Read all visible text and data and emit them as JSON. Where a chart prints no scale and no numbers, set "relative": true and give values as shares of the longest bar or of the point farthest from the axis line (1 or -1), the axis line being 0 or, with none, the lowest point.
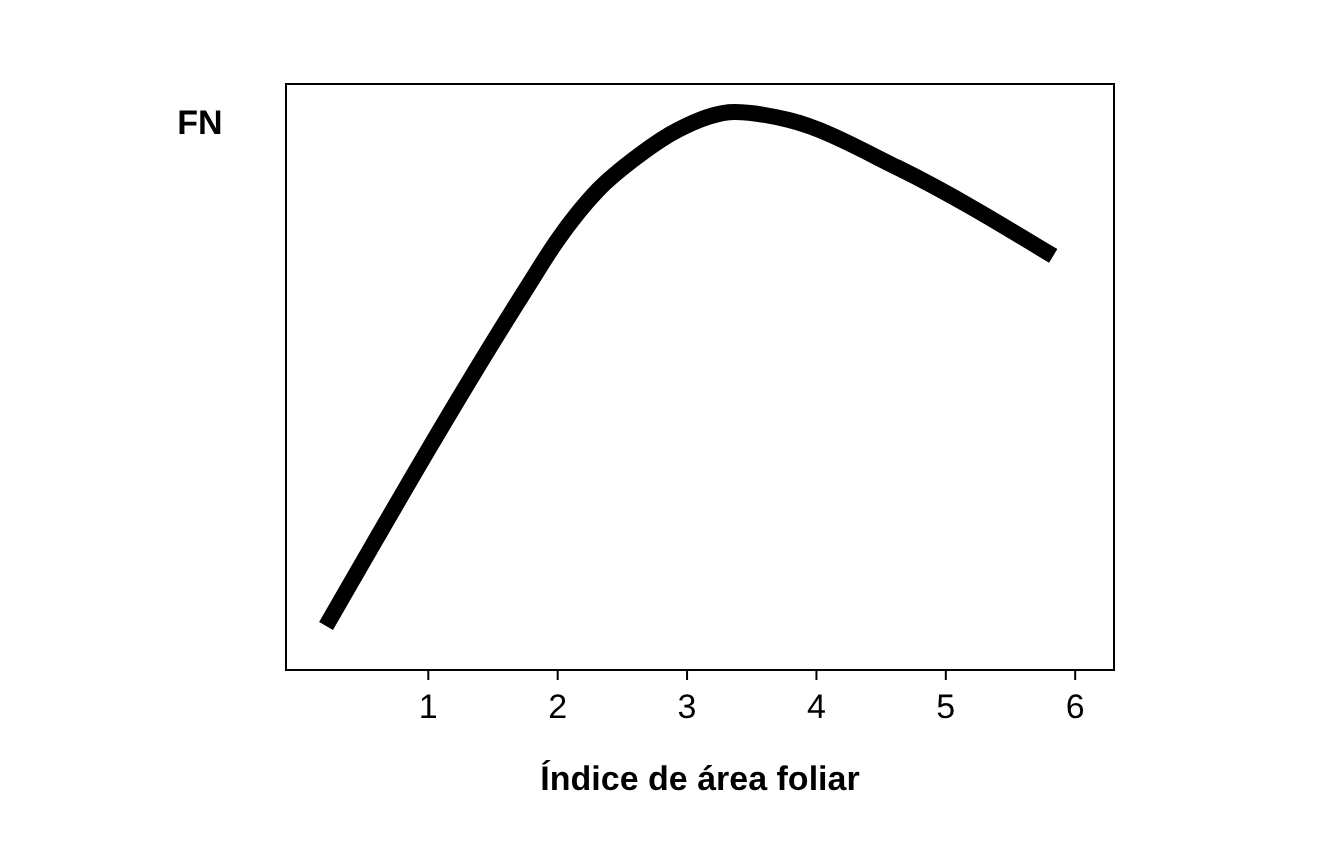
{
  "chart_data": {
    "type": "line",
    "relative": true,
    "ylabel": "FN",
    "xlabel": "Índice de área foliar",
    "xlim": [
      -0.1,
      6.3
    ],
    "xticks": [
      1,
      2,
      3,
      4,
      5,
      6
    ],
    "color": "#000000",
    "line_style": "solid",
    "grid": false,
    "x": [
      0.21,
      1.77,
      2.0,
      2.31,
      2.62,
      2.93,
      3.37,
      3.78,
      4.63,
      5.83
    ],
    "values": [
      0.079,
      0.688,
      0.771,
      0.86,
      0.921,
      0.968,
      1,
      0.986,
      0.9,
      0.742
    ]
  }
}
